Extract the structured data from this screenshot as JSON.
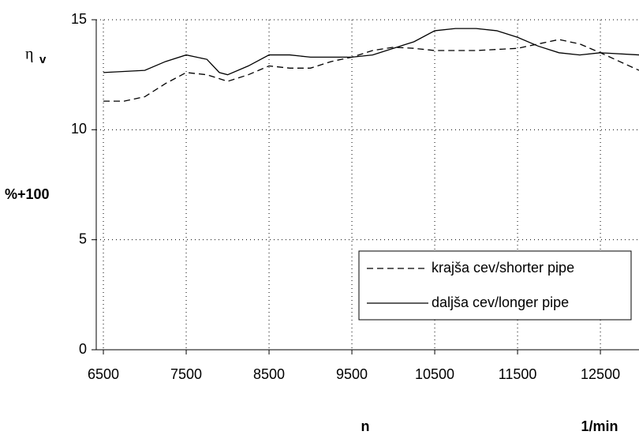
{
  "chart_data": {
    "type": "line",
    "y_label_symbol": "η",
    "y_label_subscript": "v",
    "y_label": "%+100",
    "x_label": "n",
    "x_unit": "1/min",
    "xlim": [
      6414,
      12966
    ],
    "xticks": [
      6500,
      7500,
      8500,
      9500,
      10500,
      11500,
      12500
    ],
    "ylim": [
      0,
      15
    ],
    "yticks": [
      0,
      5,
      10,
      15
    ],
    "grid": true,
    "legend": "lower right",
    "series": [
      {
        "name": "krajša cev/shorter pipe",
        "color": "#000000",
        "dash": "dashed",
        "x": [
          6500,
          6750,
          7000,
          7250,
          7500,
          7750,
          8000,
          8250,
          8500,
          8750,
          9000,
          9250,
          9500,
          9750,
          10000,
          10250,
          10500,
          11000,
          11500,
          12000,
          12250,
          12500,
          12966
        ],
        "values": [
          11.3,
          11.3,
          11.5,
          12.1,
          12.6,
          12.5,
          12.2,
          12.5,
          12.9,
          12.8,
          12.8,
          13.1,
          13.3,
          13.6,
          13.75,
          13.7,
          13.6,
          13.6,
          13.7,
          14.1,
          13.9,
          13.5,
          12.7
        ]
      },
      {
        "name": "daljša cev/longer pipe",
        "color": "#000000",
        "dash": "solid",
        "x": [
          6500,
          7000,
          7250,
          7500,
          7750,
          7900,
          8000,
          8250,
          8500,
          8750,
          9000,
          9500,
          9750,
          10000,
          10250,
          10500,
          10750,
          11000,
          11250,
          11500,
          11750,
          12000,
          12250,
          12500,
          12966
        ],
        "values": [
          12.6,
          12.7,
          13.1,
          13.4,
          13.2,
          12.6,
          12.5,
          12.9,
          13.4,
          13.4,
          13.3,
          13.3,
          13.4,
          13.7,
          14.0,
          14.5,
          14.6,
          14.6,
          14.5,
          14.2,
          13.8,
          13.5,
          13.4,
          13.5,
          13.4
        ]
      }
    ]
  }
}
